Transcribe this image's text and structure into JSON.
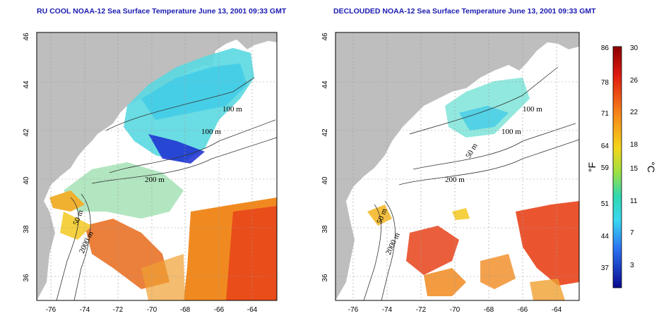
{
  "titles": {
    "left": "RU COOL NOAA-12 Sea Surface Temperature June 13, 2001 09:33 GMT",
    "right": "DECLOUDED NOAA-12 Sea Surface Temperature June 13, 2001 09:33 GMT"
  },
  "axes": {
    "lat_ticks": [
      "46",
      "44",
      "42",
      "40",
      "38",
      "36"
    ],
    "lon_ticks": [
      "-76",
      "-74",
      "-72",
      "-70",
      "-68",
      "-66",
      "-64"
    ]
  },
  "contours": {
    "left": [
      "100 m",
      "100 m",
      "200 m",
      "50 m",
      "2000 m"
    ],
    "right": [
      "100 m",
      "100 m",
      "50 m",
      "200 m",
      "50 m",
      "2000 m"
    ]
  },
  "colorbar": {
    "fahrenheit": [
      "86",
      "78",
      "71",
      "64",
      "59",
      "51",
      "44",
      "37"
    ],
    "celsius": [
      "30",
      "26",
      "22",
      "18",
      "15",
      "11",
      "7",
      "3"
    ],
    "unit_f": "°F",
    "unit_c": "°C"
  },
  "colors": {
    "land": "#bebebe",
    "title": "#1a1ab0",
    "cold": "#1a2cd0",
    "cool": "#4fd6e8",
    "warm": "#f09a20",
    "hot": "#e8421a"
  }
}
